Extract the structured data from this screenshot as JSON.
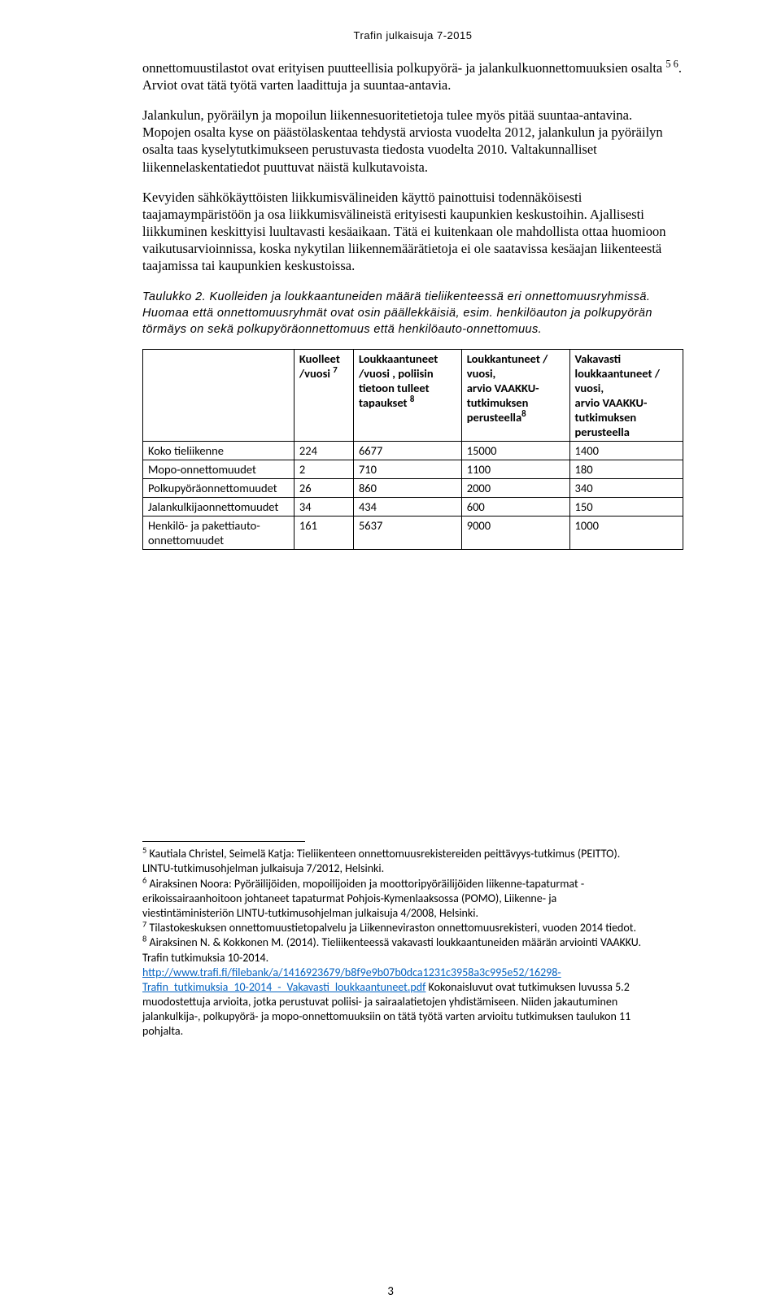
{
  "header": {
    "title": "Trafin julkaisuja 7-2015"
  },
  "paragraphs": {
    "p1": "onnettomuustilastot ovat erityisen puutteellisia polkupyörä- ja jalankulkuonnettomuuksien osalta ",
    "p1_sups": "5 6",
    "p1_tail": ". Arviot ovat tätä työtä varten laadittuja ja suuntaa-antavia.",
    "p2": "Jalankulun, pyöräilyn ja mopoilun liikennesuoritetietoja tulee myös pitää suuntaa-antavina. Mopojen osalta kyse on päästölaskentaa tehdystä arviosta vuodelta 2012, jalankulun ja pyöräilyn osalta taas kyselytutkimukseen perustuvasta tiedosta vuodelta 2010. Valtakunnalliset liikennelaskentatiedot puuttuvat näistä kulkutavoista.",
    "p3": "Kevyiden sähkökäyttöisten liikkumisvälineiden käyttö painottuisi todennäköisesti taajamaympäristöön ja osa liikkumisvälineistä erityisesti kaupunkien keskustoihin. Ajallisesti liikkuminen keskittyisi luultavasti kesäaikaan. Tätä ei kuitenkaan ole mahdollista ottaa huomioon vaikutusarvioinnissa, koska nykytilan liikennemäärätietoja ei ole saatavissa kesäajan liikenteestä taajamissa tai kaupunkien keskustoissa."
  },
  "caption": {
    "line1": "Taulukko 2. Kuolleiden ja loukkaantuneiden määrä tieliikenteessä eri onnettomuusryhmissä. Huomaa että onnettomuusryhmät ovat osin päällekkäisiä, esim. henkilöauton ja polkupyörän törmäys on sekä polkupyöräonnettomuus että henkilöauto-onnettomuus."
  },
  "table": {
    "headers": [
      "",
      "Kuolleet /vuosi ⁷",
      "Loukkaantuneet /vuosi , poliisin tietoon tulleet tapaukset ⁸",
      "Loukkantuneet / vuosi,\narvio VAAKKU-tutkimuksen perusteella⁸",
      "Vakavasti loukkaantuneet / vuosi,\narvio VAAKKU-tutkimuksen perusteella"
    ],
    "headers_parts": {
      "h1_a": "Kuolleet",
      "h1_b": "/vuosi ",
      "h1_sup": "7",
      "h2_a": "Loukkaantuneet",
      "h2_b": "/vuosi , poliisin",
      "h2_c": "tietoon tulleet",
      "h2_d": "tapaukset ",
      "h2_sup": "8",
      "h3_a": "Loukkantuneet /",
      "h3_b": "vuosi,",
      "h3_c": "arvio VAAKKU-",
      "h3_d": "tutkimuksen",
      "h3_e": "perusteella",
      "h3_sup": "8",
      "h4_a": "Vakavasti",
      "h4_b": "loukkaantuneet /",
      "h4_c": "vuosi,",
      "h4_d": "arvio VAAKKU-",
      "h4_e": "tutkimuksen",
      "h4_f": "perusteella"
    },
    "rows": [
      {
        "label": "Koko tieliikenne",
        "c1": "224",
        "c2": "6677",
        "c3": "15000",
        "c4": "1400"
      },
      {
        "label": "Mopo-onnettomuudet",
        "c1": "2",
        "c2": "710",
        "c3": "1100",
        "c4": "180"
      },
      {
        "label": "Polkupyöräonnettomuudet",
        "c1": "26",
        "c2": "860",
        "c3": "2000",
        "c4": "340"
      },
      {
        "label": "Jalankulkijaonnettomuudet",
        "c1": "34",
        "c2": "434",
        "c3": "600",
        "c4": "150"
      },
      {
        "label_a": "Henkilö- ja pakettiauto-",
        "label_b": "onnettomuudet",
        "c1": "161",
        "c2": "5637",
        "c3": "9000",
        "c4": "1000"
      }
    ]
  },
  "footnotes": {
    "f5_a": " Kautiala Christel, Seimelä Katja: Tieliikenteen onnettomuusrekistereiden peittävyys-tutkimus (PEITTO).",
    "f5_b": "LINTU-tutkimusohjelman julkaisuja 7/2012, Helsinki.",
    "f6_a": " Airaksinen Noora: Pyöräilijöiden, mopoilijoiden ja moottoripyöräilijöiden liikenne-tapaturmat -",
    "f6_b": "erikoissairaanhoitoon johtaneet tapaturmat Pohjois-Kymenlaaksossa (POMO), Liikenne- ja",
    "f6_c": "viestintäministeriön LINTU-tutkimusohjelman julkaisuja 4/2008, Helsinki.",
    "f7": " Tilastokeskuksen onnettomuustietopalvelu ja Liikenneviraston onnettomuusrekisteri, vuoden 2014 tiedot.",
    "f8_a": " Airaksinen N. & Kokkonen M. (2014). Tieliikenteessä vakavasti loukkaantuneiden määrän arviointi VAAKKU.",
    "f8_b": "Trafin tutkimuksia 10-2014.",
    "f8_link1": "http://www.trafi.fi/filebank/a/1416923679/b8f9e9b07b0dca1231c3958a3c995e52/16298-",
    "f8_link2": "Trafin_tutkimuksia_10-2014_-_Vakavasti_loukkaantuneet.pdf",
    "f8_tail": " Kokonaisluvut ovat tutkimuksen luvussa 5.2",
    "f8_c": "muodostettuja arvioita, jotka perustuvat poliisi- ja sairaalatietojen yhdistämiseen. Niiden jakautuminen",
    "f8_d": "jalankulkija-, polkupyörä- ja mopo-onnettomuuksiin on tätä työtä varten arvioitu tutkimuksen taulukon 11",
    "f8_e": "pohjalta."
  },
  "page_number": "3"
}
